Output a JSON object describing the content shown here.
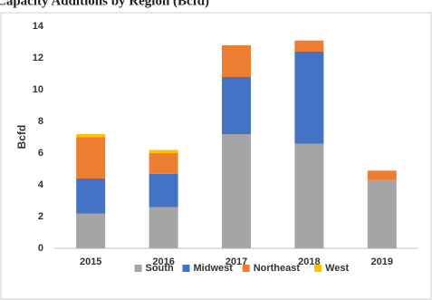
{
  "chart_data": {
    "type": "stacked-bar",
    "title": "Capacity Additions by Region (Bcfd)",
    "y_label": "Bcfd",
    "categories": [
      "2015",
      "2016",
      "2017",
      "2018",
      "2019"
    ],
    "series": [
      {
        "name": "South",
        "color": "#a5a5a5",
        "values": [
          2.2,
          2.6,
          7.2,
          6.6,
          4.3
        ]
      },
      {
        "name": "Midwest",
        "color": "#4472c4",
        "values": [
          2.2,
          2.1,
          3.6,
          5.8,
          0
        ]
      },
      {
        "name": "Northeast",
        "color": "#ed7d31",
        "values": [
          2.6,
          1.3,
          2.0,
          0.7,
          0.6
        ]
      },
      {
        "name": "West",
        "color": "#ffc000",
        "values": [
          0.2,
          0.2,
          0,
          0,
          0
        ]
      }
    ],
    "ylim": [
      0,
      14
    ],
    "yticks": [
      0,
      2,
      4,
      6,
      8,
      10,
      12,
      14
    ],
    "grid": false,
    "legend": "bottom"
  }
}
